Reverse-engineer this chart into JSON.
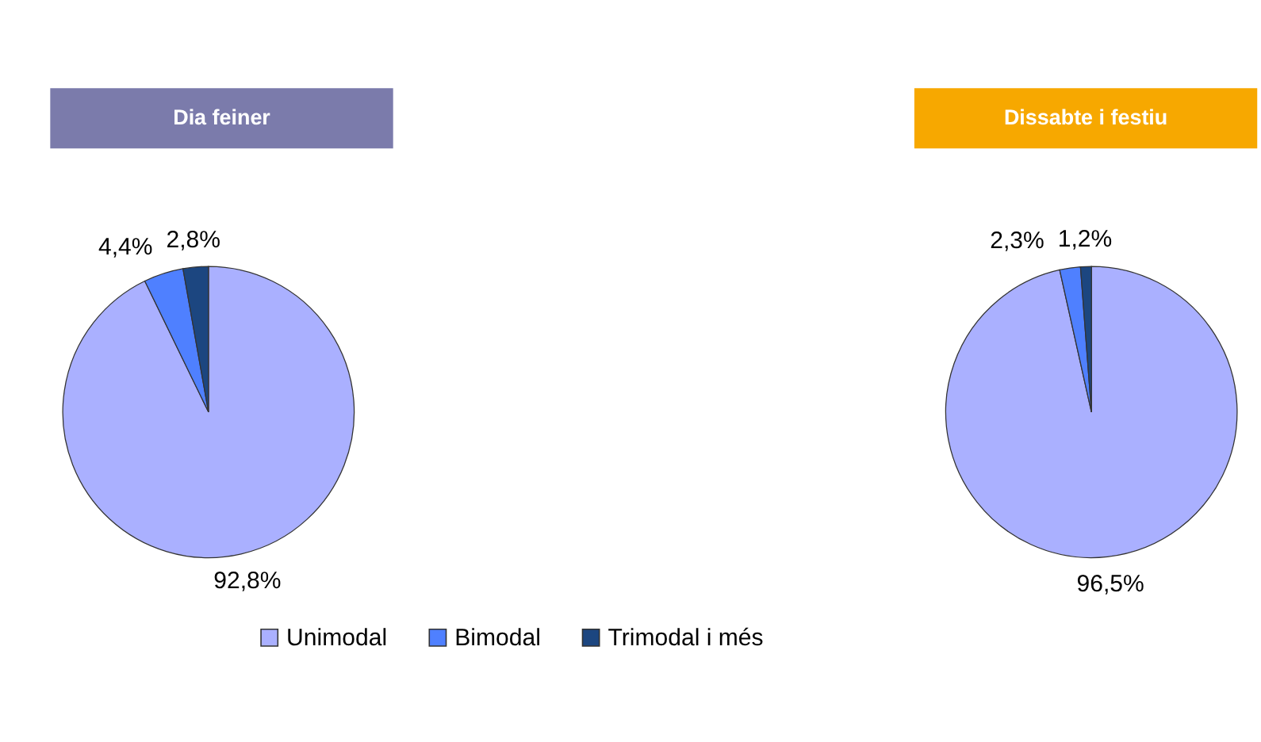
{
  "chart_data": [
    {
      "type": "pie",
      "title": "Dia feiner",
      "categories": [
        "Unimodal",
        "Bimodal",
        "Trimodal i més"
      ],
      "values": [
        92.8,
        4.4,
        2.8
      ],
      "colors": [
        "#aab0ff",
        "#4f80ff",
        "#1c4680"
      ],
      "value_labels": [
        "92,8%",
        "4,4%",
        "2,8%"
      ],
      "legend": "bottom"
    },
    {
      "type": "pie",
      "title": "Dissabte i festiu",
      "categories": [
        null,
        null,
        null
      ],
      "values": [
        96.5,
        2.3,
        1.2
      ],
      "colors": [
        "#aab0ff",
        "#4f80ff",
        "#1c4680"
      ],
      "value_labels": [
        "96,5%",
        "2,3%",
        "1,2%"
      ]
    }
  ]
}
